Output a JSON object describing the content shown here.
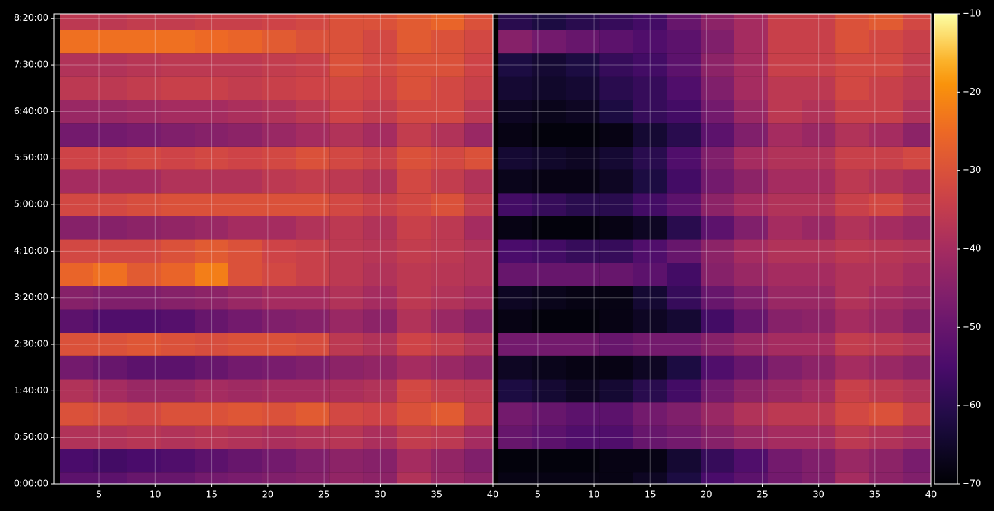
{
  "chart_data": [
    {
      "type": "heatmap",
      "x": [
        3,
        6,
        9,
        12,
        15,
        18,
        21,
        24,
        27,
        30,
        33,
        36,
        39
      ],
      "y": [
        0,
        25,
        50,
        75,
        100,
        125,
        150,
        175,
        200,
        225,
        250,
        275,
        300,
        325,
        350,
        375,
        400,
        425,
        450,
        475,
        500
      ],
      "xlim": [
        1,
        40
      ],
      "ylim": [
        0,
        505
      ],
      "grid": true,
      "xticks": [
        5,
        10,
        15,
        20,
        25,
        30,
        35,
        40
      ],
      "yticks": [
        {
          "value": 0,
          "label": "0:00:00"
        },
        {
          "value": 50,
          "label": "0:50:00"
        },
        {
          "value": 100,
          "label": "1:40:00"
        },
        {
          "value": 150,
          "label": "2:30:00"
        },
        {
          "value": 200,
          "label": "3:20:00"
        },
        {
          "value": 250,
          "label": "4:10:00"
        },
        {
          "value": 300,
          "label": "5:00:00"
        },
        {
          "value": 350,
          "label": "5:50:00"
        },
        {
          "value": 400,
          "label": "6:40:00"
        },
        {
          "value": 450,
          "label": "7:30:00"
        },
        {
          "value": 500,
          "label": "8:20:00"
        }
      ],
      "z": [
        [
          -52,
          -52,
          -50,
          -50,
          -48,
          -47,
          -46,
          -45,
          -43,
          -44,
          -38,
          -42,
          -44
        ],
        [
          -55,
          -56,
          -55,
          -54,
          -52,
          -50,
          -48,
          -46,
          -44,
          -45,
          -40,
          -43,
          -46
        ],
        [
          -38,
          -38,
          -37,
          -38,
          -37,
          -38,
          -39,
          -38,
          -37,
          -39,
          -35,
          -36,
          -40
        ],
        [
          -30,
          -31,
          -32,
          -30,
          -30,
          -29,
          -30,
          -28,
          -32,
          -33,
          -30,
          -28,
          -34
        ],
        [
          -38,
          -40,
          -42,
          -42,
          -40,
          -41,
          -40,
          -40,
          -39,
          -38,
          -32,
          -35,
          -36
        ],
        [
          -48,
          -50,
          -52,
          -52,
          -50,
          -48,
          -47,
          -46,
          -44,
          -43,
          -40,
          -42,
          -44
        ],
        [
          -30,
          -30,
          -29,
          -30,
          -31,
          -30,
          -30,
          -31,
          -36,
          -38,
          -33,
          -35,
          -38
        ],
        [
          -52,
          -54,
          -54,
          -53,
          -50,
          -48,
          -46,
          -45,
          -42,
          -44,
          -38,
          -42,
          -45
        ],
        [
          -45,
          -46,
          -46,
          -45,
          -44,
          -42,
          -40,
          -40,
          -38,
          -40,
          -36,
          -38,
          -40
        ],
        [
          -26,
          -24,
          -28,
          -26,
          -22,
          -30,
          -32,
          -34,
          -36,
          -38,
          -36,
          -37,
          -38
        ],
        [
          -32,
          -32,
          -32,
          -30,
          -28,
          -30,
          -33,
          -34,
          -36,
          -37,
          -35,
          -36,
          -38
        ],
        [
          -45,
          -45,
          -44,
          -43,
          -42,
          -40,
          -40,
          -38,
          -36,
          -38,
          -34,
          -36,
          -40
        ],
        [
          -32,
          -32,
          -31,
          -30,
          -30,
          -30,
          -30,
          -30,
          -32,
          -34,
          -32,
          -30,
          -35
        ],
        [
          -40,
          -40,
          -40,
          -38,
          -38,
          -38,
          -36,
          -35,
          -36,
          -38,
          -32,
          -35,
          -38
        ],
        [
          -33,
          -33,
          -32,
          -33,
          -32,
          -33,
          -32,
          -30,
          -32,
          -34,
          -30,
          -32,
          -30
        ],
        [
          -48,
          -48,
          -47,
          -46,
          -45,
          -44,
          -42,
          -40,
          -38,
          -40,
          -35,
          -38,
          -42
        ],
        [
          -42,
          -42,
          -41,
          -40,
          -40,
          -39,
          -38,
          -36,
          -33,
          -35,
          -32,
          -32,
          -36
        ],
        [
          -36,
          -36,
          -35,
          -34,
          -34,
          -35,
          -34,
          -33,
          -32,
          -33,
          -30,
          -32,
          -34
        ],
        [
          -38,
          -38,
          -37,
          -36,
          -36,
          -36,
          -35,
          -34,
          -30,
          -32,
          -30,
          -30,
          -33
        ],
        [
          -24,
          -24,
          -24,
          -24,
          -25,
          -26,
          -28,
          -30,
          -30,
          -32,
          -28,
          -30,
          -32
        ],
        [
          -36,
          -36,
          -35,
          -35,
          -34,
          -34,
          -33,
          -32,
          -30,
          -30,
          -28,
          -26,
          -30
        ]
      ]
    },
    {
      "type": "heatmap",
      "x": [
        3,
        6,
        9,
        12,
        15,
        18,
        21,
        24,
        27,
        30,
        33,
        36,
        39
      ],
      "y": [
        0,
        25,
        50,
        75,
        100,
        125,
        150,
        175,
        200,
        225,
        250,
        275,
        300,
        325,
        350,
        375,
        400,
        425,
        450,
        475,
        500
      ],
      "xlim": [
        1,
        40
      ],
      "ylim": [
        0,
        505
      ],
      "grid": true,
      "xticks": [
        5,
        10,
        15,
        20,
        25,
        30,
        35,
        40
      ],
      "z": [
        [
          -68,
          -68,
          -68,
          -68,
          -66,
          -62,
          -55,
          -52,
          -48,
          -46,
          -40,
          -44,
          -46
        ],
        [
          -69,
          -69,
          -69,
          -68,
          -68,
          -64,
          -58,
          -54,
          -48,
          -46,
          -42,
          -44,
          -47
        ],
        [
          -50,
          -52,
          -54,
          -54,
          -50,
          -48,
          -45,
          -42,
          -40,
          -40,
          -36,
          -38,
          -40
        ],
        [
          -48,
          -50,
          -52,
          -52,
          -48,
          -46,
          -42,
          -38,
          -36,
          -36,
          -32,
          -30,
          -34
        ],
        [
          -62,
          -64,
          -66,
          -64,
          -60,
          -56,
          -48,
          -44,
          -42,
          -40,
          -34,
          -36,
          -38
        ],
        [
          -66,
          -67,
          -68,
          -68,
          -66,
          -62,
          -54,
          -50,
          -46,
          -44,
          -40,
          -42,
          -44
        ],
        [
          -48,
          -48,
          -48,
          -50,
          -48,
          -48,
          -45,
          -42,
          -40,
          -40,
          -35,
          -36,
          -38
        ],
        [
          -68,
          -69,
          -69,
          -68,
          -66,
          -64,
          -56,
          -50,
          -45,
          -44,
          -40,
          -42,
          -45
        ],
        [
          -66,
          -67,
          -68,
          -68,
          -64,
          -58,
          -50,
          -46,
          -42,
          -42,
          -38,
          -40,
          -42
        ],
        [
          -50,
          -50,
          -50,
          -50,
          -52,
          -56,
          -45,
          -42,
          -40,
          -40,
          -38,
          -38,
          -40
        ],
        [
          -55,
          -56,
          -58,
          -58,
          -54,
          -50,
          -44,
          -40,
          -38,
          -38,
          -36,
          -37,
          -38
        ],
        [
          -68,
          -69,
          -69,
          -68,
          -66,
          -60,
          -52,
          -46,
          -40,
          -42,
          -38,
          -40,
          -42
        ],
        [
          -56,
          -58,
          -60,
          -60,
          -56,
          -52,
          -44,
          -40,
          -38,
          -38,
          -34,
          -32,
          -36
        ],
        [
          -67,
          -68,
          -68,
          -66,
          -62,
          -56,
          -48,
          -44,
          -40,
          -40,
          -36,
          -38,
          -40
        ],
        [
          -64,
          -65,
          -66,
          -64,
          -60,
          -54,
          -46,
          -40,
          -38,
          -38,
          -34,
          -34,
          -32
        ],
        [
          -68,
          -69,
          -69,
          -68,
          -64,
          -60,
          -52,
          -46,
          -40,
          -42,
          -38,
          -40,
          -44
        ],
        [
          -66,
          -67,
          -66,
          -62,
          -58,
          -56,
          -48,
          -42,
          -36,
          -38,
          -34,
          -34,
          -38
        ],
        [
          -64,
          -65,
          -64,
          -60,
          -58,
          -54,
          -46,
          -40,
          -36,
          -36,
          -32,
          -34,
          -36
        ],
        [
          -62,
          -64,
          -62,
          -58,
          -56,
          -52,
          -44,
          -40,
          -34,
          -34,
          -32,
          -32,
          -35
        ],
        [
          -45,
          -48,
          -50,
          -52,
          -54,
          -52,
          -46,
          -40,
          -34,
          -34,
          -30,
          -32,
          -34
        ],
        [
          -60,
          -62,
          -60,
          -58,
          -56,
          -50,
          -44,
          -40,
          -34,
          -34,
          -30,
          -28,
          -32
        ]
      ]
    }
  ],
  "colorbar": {
    "colormap": "inferno",
    "lim": [
      -70,
      -10
    ],
    "ticks": [
      {
        "value": -70,
        "label": "−70"
      },
      {
        "value": -60,
        "label": "−60"
      },
      {
        "value": -50,
        "label": "−50"
      },
      {
        "value": -40,
        "label": "−40"
      },
      {
        "value": -30,
        "label": "−30"
      },
      {
        "value": -20,
        "label": "−20"
      },
      {
        "value": -10,
        "label": "−10"
      }
    ]
  }
}
